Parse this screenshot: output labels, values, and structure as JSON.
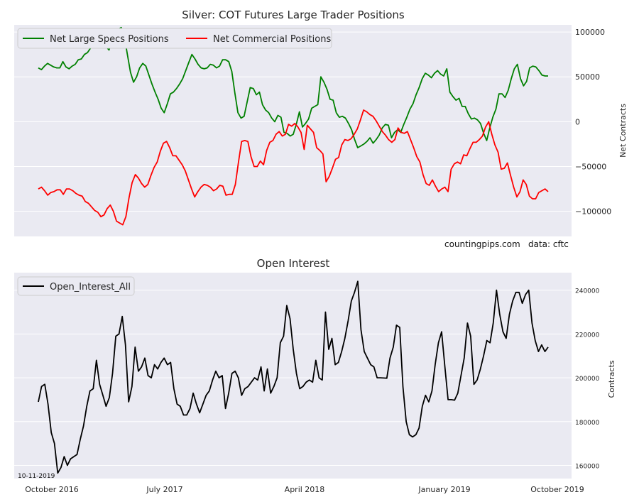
{
  "credit": {
    "site": "countingpips.com",
    "source": "data: cftc"
  },
  "date_stamp": "10-11-2019",
  "colors": {
    "panel_bg": "#eaeaf2",
    "grid": "#ffffff",
    "specs": "#008000",
    "commercial": "#ff0000",
    "open_interest": "#000000"
  },
  "chart_data": [
    {
      "type": "line",
      "title": "Silver: COT Futures Large Trader Positions",
      "ylabel": "Net Contracts",
      "ylim": [
        -128000,
        108000
      ],
      "yticks": [
        100000,
        50000,
        0,
        -50000,
        -100000
      ],
      "ytick_labels": [
        "100000",
        "50000",
        "0",
        "−50000",
        "−100000"
      ],
      "legend_position": "top-left",
      "grid": true,
      "series": [
        {
          "name": "Net Large Specs Positions",
          "color": "#008000",
          "values": [
            60000,
            58000,
            62000,
            65000,
            63000,
            61000,
            60000,
            60000,
            67000,
            61000,
            59000,
            62000,
            64000,
            69000,
            70000,
            75000,
            77000,
            82000,
            87000,
            88000,
            97000,
            95000,
            84000,
            80000,
            90000,
            100000,
            103000,
            105000,
            95000,
            75000,
            55000,
            44000,
            50000,
            60000,
            65000,
            62000,
            52000,
            42000,
            33000,
            25000,
            15000,
            10000,
            20000,
            31000,
            33000,
            37000,
            42000,
            48000,
            57000,
            66000,
            75000,
            70000,
            64000,
            60000,
            59000,
            60000,
            64000,
            63000,
            60000,
            62000,
            69000,
            69000,
            67000,
            56000,
            32000,
            10000,
            4000,
            6000,
            22000,
            38000,
            37000,
            30000,
            33000,
            19000,
            13000,
            10000,
            4000,
            0,
            7000,
            5000,
            -12000,
            -13000,
            -16000,
            -14000,
            -3000,
            11000,
            -6000,
            -2000,
            3000,
            15000,
            17000,
            19000,
            50000,
            44000,
            36000,
            25000,
            24000,
            10000,
            5000,
            6000,
            4000,
            -2000,
            -9000,
            -20000,
            -29000,
            -27000,
            -25000,
            -22000,
            -18000,
            -24000,
            -20000,
            -15000,
            -7000,
            -3000,
            -4000,
            -18000,
            -12000,
            -9000,
            -12000,
            -3000,
            5000,
            14000,
            20000,
            30000,
            38000,
            48000,
            54000,
            52000,
            49000,
            54000,
            57000,
            53000,
            51000,
            59000,
            33000,
            28000,
            24000,
            26000,
            17000,
            17000,
            9000,
            3000,
            4000,
            2000,
            -2000,
            -13000,
            -21000,
            -7000,
            5000,
            14000,
            31000,
            31000,
            27000,
            35000,
            48000,
            59000,
            64000,
            48000,
            40000,
            45000,
            60000,
            62000,
            61000,
            57000,
            52000,
            51000,
            51000
          ]
        },
        {
          "name": "Net Commercial Positions",
          "color": "#ff0000",
          "values": [
            -75000,
            -73000,
            -77000,
            -82000,
            -79000,
            -78000,
            -76000,
            -76000,
            -81000,
            -75000,
            -75000,
            -77000,
            -80000,
            -82000,
            -83000,
            -89000,
            -91000,
            -95000,
            -99000,
            -101000,
            -106000,
            -104000,
            -97000,
            -93000,
            -100000,
            -111000,
            -113000,
            -115000,
            -106000,
            -85000,
            -68000,
            -59000,
            -63000,
            -69000,
            -73000,
            -70000,
            -60000,
            -51000,
            -45000,
            -33000,
            -24000,
            -22000,
            -29000,
            -38000,
            -38000,
            -43000,
            -48000,
            -55000,
            -65000,
            -75000,
            -84000,
            -78000,
            -73000,
            -70000,
            -71000,
            -73000,
            -77000,
            -75000,
            -71000,
            -72000,
            -82000,
            -81000,
            -81000,
            -70000,
            -45000,
            -22000,
            -21000,
            -22000,
            -39000,
            -50000,
            -50000,
            -44000,
            -48000,
            -32000,
            -23000,
            -21000,
            -14000,
            -11000,
            -16000,
            -14000,
            -3000,
            -5000,
            -2000,
            -6000,
            -12000,
            -31000,
            -4000,
            -8000,
            -12000,
            -29000,
            -32000,
            -36000,
            -67000,
            -61000,
            -52000,
            -42000,
            -40000,
            -26000,
            -20000,
            -21000,
            -19000,
            -14000,
            -8000,
            2000,
            13000,
            11000,
            8000,
            6000,
            1000,
            -5000,
            -11000,
            -15000,
            -20000,
            -23000,
            -20000,
            -7000,
            -12000,
            -13000,
            -11000,
            -20000,
            -29000,
            -39000,
            -45000,
            -59000,
            -69000,
            -71000,
            -65000,
            -72000,
            -78000,
            -75000,
            -73000,
            -78000,
            -53000,
            -47000,
            -45000,
            -47000,
            -37000,
            -38000,
            -30000,
            -23000,
            -23000,
            -20000,
            -16000,
            -6000,
            0,
            -14000,
            -26000,
            -34000,
            -53000,
            -52000,
            -46000,
            -60000,
            -73000,
            -84000,
            -78000,
            -65000,
            -70000,
            -83000,
            -86000,
            -86000,
            -79000,
            -77000,
            -75000,
            -78000
          ]
        }
      ]
    },
    {
      "type": "line",
      "title": "Open Interest",
      "ylabel": "Contracts",
      "ylim": [
        154000,
        248000
      ],
      "yticks": [
        240000,
        220000,
        200000,
        180000,
        160000
      ],
      "ytick_labels": [
        "240000",
        "220000",
        "200000",
        "180000",
        "160000"
      ],
      "x_tick_labels": [
        "October 2016",
        "July 2017",
        "April 2018",
        "January 2019",
        "October 2019"
      ],
      "legend_position": "top-left",
      "grid": true,
      "series": [
        {
          "name": "Open_Interest_All",
          "color": "#000000",
          "values": [
            189000,
            196000,
            197000,
            188000,
            175000,
            170000,
            156500,
            159000,
            164000,
            160000,
            163000,
            164000,
            165000,
            172000,
            178000,
            187000,
            194000,
            195000,
            208000,
            197000,
            192000,
            187000,
            191000,
            202000,
            219000,
            220000,
            228000,
            215000,
            189000,
            196000,
            214000,
            203000,
            205000,
            209000,
            201000,
            200000,
            206000,
            204000,
            207000,
            209000,
            206000,
            207000,
            195000,
            188000,
            187000,
            183000,
            183000,
            186000,
            193000,
            188000,
            184000,
            188000,
            192000,
            194000,
            199000,
            203000,
            200000,
            201000,
            186000,
            193000,
            202000,
            203000,
            200000,
            192000,
            195000,
            196000,
            198000,
            200000,
            199000,
            205000,
            194000,
            204000,
            193000,
            196000,
            200000,
            216000,
            219000,
            233000,
            227000,
            213000,
            202000,
            195000,
            196000,
            198000,
            199000,
            198000,
            208000,
            200000,
            199000,
            230000,
            213000,
            218000,
            206000,
            207000,
            212000,
            218000,
            226000,
            235000,
            239000,
            244000,
            222000,
            212000,
            209000,
            206000,
            205000,
            200000,
            200000,
            199900,
            199800,
            209000,
            214000,
            224000,
            223000,
            196000,
            180000,
            174000,
            173000,
            174000,
            177000,
            187000,
            192000,
            189000,
            194000,
            206000,
            216000,
            221000,
            205000,
            190000,
            190000,
            189800,
            193000,
            201000,
            209000,
            225000,
            219000,
            197000,
            199000,
            204000,
            210000,
            217000,
            216000,
            225000,
            240000,
            229000,
            221000,
            218000,
            229000,
            235000,
            239000,
            239000,
            234000,
            238000,
            240000,
            225000,
            217000,
            212000,
            215000,
            212000,
            214000
          ]
        }
      ]
    }
  ]
}
